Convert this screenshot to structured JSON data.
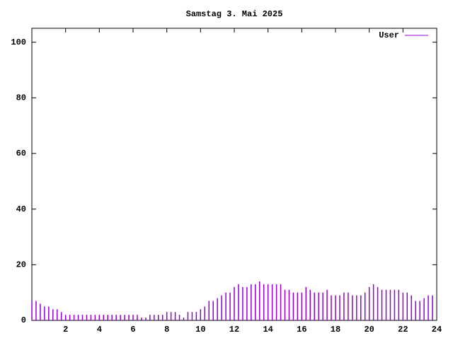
{
  "chart_data": {
    "type": "impulses",
    "title": "Samstag 3. Mai 2025",
    "xlim": [
      0,
      24
    ],
    "xticks": [
      2,
      4,
      6,
      8,
      10,
      12,
      14,
      16,
      18,
      20,
      22,
      24
    ],
    "ylim": [
      0,
      105
    ],
    "yticks": [
      0,
      20,
      40,
      60,
      80,
      100
    ],
    "legend": "top-right",
    "x": [
      0,
      0.25,
      0.5,
      0.75,
      1,
      1.25,
      1.5,
      1.75,
      2,
      2.25,
      2.5,
      2.75,
      3,
      3.25,
      3.5,
      3.75,
      4,
      4.25,
      4.5,
      4.75,
      5,
      5.25,
      5.5,
      5.75,
      6,
      6.25,
      6.5,
      6.75,
      7,
      7.25,
      7.5,
      7.75,
      8,
      8.25,
      8.5,
      8.75,
      9,
      9.25,
      9.5,
      9.75,
      10,
      10.25,
      10.5,
      10.75,
      11,
      11.25,
      11.5,
      11.75,
      12,
      12.25,
      12.5,
      12.75,
      13,
      13.25,
      13.5,
      13.75,
      14,
      14.25,
      14.5,
      14.75,
      15,
      15.25,
      15.5,
      15.75,
      16,
      16.25,
      16.5,
      16.75,
      17,
      17.25,
      17.5,
      17.75,
      18,
      18.25,
      18.5,
      18.75,
      19,
      19.25,
      19.5,
      19.75,
      20,
      20.25,
      20.5,
      20.75,
      21,
      21.25,
      21.5,
      21.75,
      22,
      22.25,
      22.5,
      22.75,
      23,
      23.25,
      23.5,
      23.75
    ],
    "series": [
      {
        "name": "User",
        "color": "#9400d3",
        "values": [
          7,
          7,
          6,
          5,
          5,
          4,
          4,
          3,
          2,
          2,
          2,
          2,
          2,
          2,
          2,
          2,
          2,
          2,
          2,
          2,
          2,
          2,
          2,
          2,
          2,
          2,
          1,
          1,
          2,
          2,
          2,
          2,
          3,
          3,
          3,
          2,
          1,
          3,
          3,
          3,
          4,
          5,
          7,
          7,
          8,
          9,
          10,
          10,
          12,
          13,
          12,
          12,
          13,
          13,
          14,
          13,
          13,
          13,
          13,
          13,
          11,
          11,
          10,
          10,
          10,
          12,
          11,
          10,
          10,
          10,
          11,
          9,
          9,
          9,
          10,
          10,
          9,
          9,
          9,
          10,
          12,
          13,
          12,
          11,
          11,
          11,
          11,
          11,
          10,
          10,
          9,
          7,
          7,
          8,
          9,
          9
        ]
      }
    ]
  }
}
